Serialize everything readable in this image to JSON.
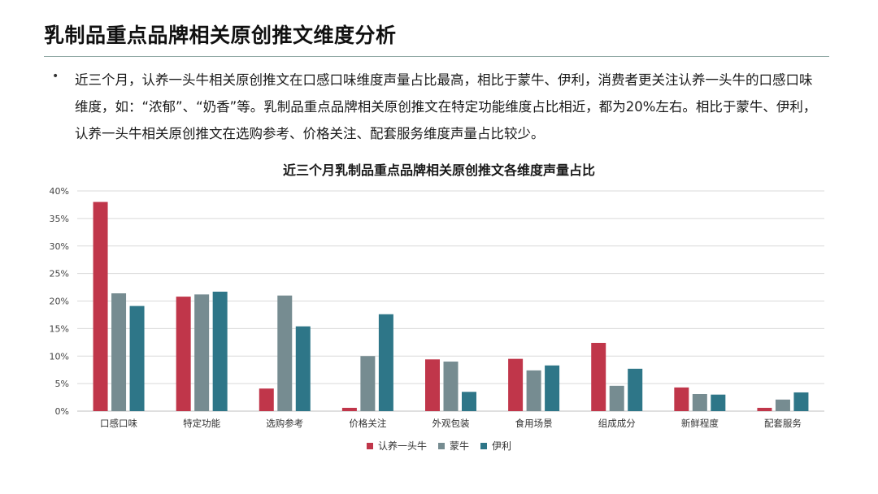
{
  "page": {
    "title": "乳制品重点品牌相关原创推文维度分析",
    "bullet": "•",
    "summary": "近三个月，认养一头牛相关原创推文在口感口味维度声量占比最高，相比于蒙牛、伊利，消费者更关注认养一头牛的口感口味维度，如：“浓郁”、“奶香”等。乳制品重点品牌相关原创推文在特定功能维度占比相近，都为20%左右。相比于蒙牛、伊利，认养一头牛相关原创推文在选购参考、价格关注、配套服务维度声量占比较少。"
  },
  "chart_data": {
    "type": "bar",
    "title": "近三个月乳制品重点品牌相关原创推文各维度声量占比",
    "xlabel": "",
    "ylabel": "",
    "categories": [
      "口感口味",
      "特定功能",
      "选购参考",
      "价格关注",
      "外观包装",
      "食用场景",
      "组成成分",
      "新鲜程度",
      "配套服务"
    ],
    "series": [
      {
        "name": "认养一头牛",
        "color": "#c0364a",
        "values": [
          38.0,
          20.8,
          4.1,
          0.6,
          9.4,
          9.5,
          12.4,
          4.3,
          0.6
        ]
      },
      {
        "name": "蒙牛",
        "color": "#768c91",
        "values": [
          21.4,
          21.2,
          21.0,
          10.0,
          9.0,
          7.4,
          4.6,
          3.1,
          2.1
        ]
      },
      {
        "name": "伊利",
        "color": "#2e7688",
        "values": [
          19.1,
          21.7,
          15.4,
          17.6,
          3.5,
          8.3,
          7.7,
          3.0,
          3.4
        ]
      }
    ],
    "ylim": [
      0,
      40
    ],
    "yticks": [
      0,
      5,
      10,
      15,
      20,
      25,
      30,
      35,
      40
    ],
    "ytick_labels": [
      "0%",
      "5%",
      "10%",
      "15%",
      "20%",
      "25%",
      "30%",
      "35%",
      "40%"
    ],
    "grid": true,
    "legend_position": "bottom"
  }
}
